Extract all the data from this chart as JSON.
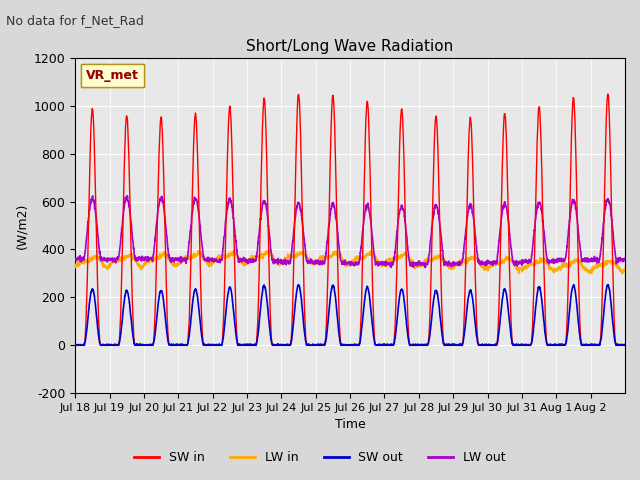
{
  "title": "Short/Long Wave Radiation",
  "suptitle": "No data for f_Net_Rad",
  "xlabel": "Time",
  "ylabel": "(W/m2)",
  "ylim": [
    -200,
    1200
  ],
  "yticks": [
    -200,
    0,
    200,
    400,
    600,
    800,
    1000,
    1200
  ],
  "legend_label": "VR_met",
  "legend_items": [
    "SW in",
    "LW in",
    "SW out",
    "LW out"
  ],
  "legend_colors": [
    "#ff0000",
    "#ffaa00",
    "#0000cc",
    "#aa00cc"
  ],
  "x_tick_labels": [
    "Jul 18",
    "Jul 19",
    "Jul 20",
    "Jul 21",
    "Jul 22",
    "Jul 23",
    "Jul 24",
    "Jul 25",
    "Jul 26",
    "Jul 27",
    "Jul 28",
    "Jul 29",
    "Jul 30",
    "Jul 31",
    "Aug 1",
    "Aug 2"
  ],
  "n_days": 16,
  "sw_in_peak": 1000,
  "lw_in_base": 350,
  "lw_in_peak": 420,
  "sw_out_peak": 240,
  "lw_out_base": 380,
  "lw_out_peak": 600
}
